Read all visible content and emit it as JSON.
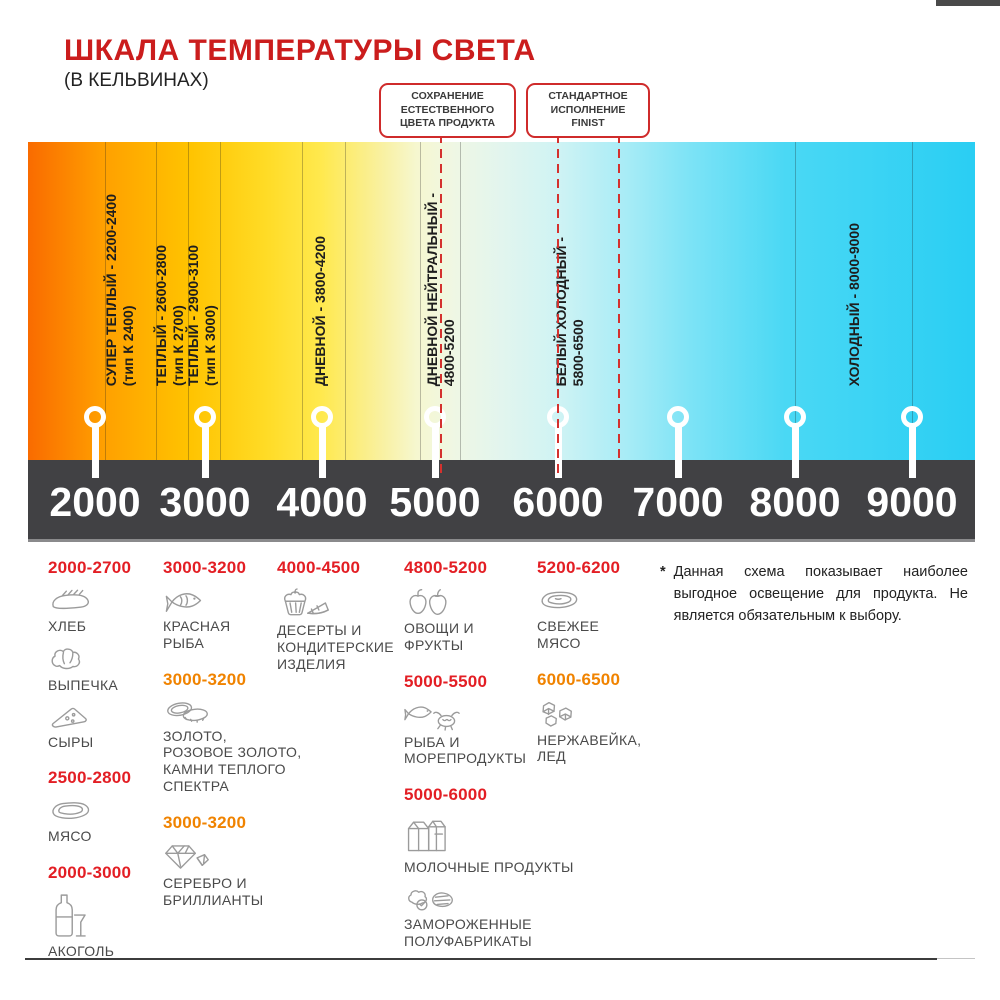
{
  "header": {
    "title": "ШКАЛА ТЕМПЕРАТУРЫ СВЕТА",
    "subtitle": "(В КЕЛЬВИНАХ)"
  },
  "callouts": [
    {
      "text": "СОХРАНЕНИЕ\nЕСТЕСТВЕННОГО\nЦВЕТА ПРОДУКТА"
    },
    {
      "text": "СТАНДАРТНОЕ\nИСПОЛНЕНИЕ\nFINIST"
    }
  ],
  "scale": {
    "segments": [
      {
        "label": "СУПЕР ТЕПЛЫЙ - 2200-2400",
        "sub": "(тип К 2400)"
      },
      {
        "label": "ТЕПЛЫЙ - 2600-2800",
        "sub": "(тип К 2700)"
      },
      {
        "label": "ТЕПЛЫЙ - 2900-3100",
        "sub": "(тип К 3000)"
      },
      {
        "label": "ДНЕВНОЙ - 3800-4200",
        "sub": ""
      },
      {
        "label": "ДНЕВНОЙ НЕЙТРАЛЬНЫЙ -",
        "sub": "4800-5200"
      },
      {
        "label": "БЕЛЫЙ ХОЛОДНЫЙ -",
        "sub": "5800-6500"
      },
      {
        "label": "ХОЛОДНЫЙ - 8000-9000",
        "sub": ""
      }
    ],
    "ticks": [
      "2000",
      "3000",
      "4000",
      "5000",
      "6000",
      "7000",
      "8000",
      "9000"
    ]
  },
  "products": {
    "columns": [
      {
        "groups": [
          {
            "range": "2000-2700",
            "tone": "red",
            "items": [
              {
                "icon": "bread-icon",
                "label": "ХЛЕБ"
              },
              {
                "icon": "pastry-icon",
                "label": "ВЫПЕЧКА"
              },
              {
                "icon": "cheese-icon",
                "label": "СЫРЫ"
              }
            ]
          },
          {
            "range": "2500-2800",
            "tone": "red",
            "items": [
              {
                "icon": "meat-icon",
                "label": "МЯСО"
              }
            ]
          },
          {
            "range": "2000-3000",
            "tone": "red",
            "items": [
              {
                "icon": "alcohol-icon",
                "label": "АКОГОЛЬ"
              }
            ]
          }
        ]
      },
      {
        "groups": [
          {
            "range": "3000-3200",
            "tone": "red",
            "items": [
              {
                "icon": "fish-icon",
                "label": "КРАСНАЯ\nРЫБА"
              }
            ]
          },
          {
            "range": "3000-3200",
            "tone": "orange",
            "items": [
              {
                "icon": "rings-icon",
                "label": "ЗОЛОТО,\nРОЗОВОЕ ЗОЛОТО,\nКАМНИ ТЕПЛОГО\nСПЕКТРА"
              }
            ]
          },
          {
            "range": "3000-3200",
            "tone": "orange",
            "items": [
              {
                "icon": "diamond-icon",
                "label": "СЕРЕБРО И\nБРИЛЛИАНТЫ"
              }
            ]
          }
        ]
      },
      {
        "groups": [
          {
            "range": "4000-4500",
            "tone": "red",
            "items": [
              {
                "icon": "dessert-icon",
                "label": "ДЕСЕРТЫ И\nКОНДИТЕРСКИЕ\nИЗДЕЛИЯ"
              }
            ]
          }
        ]
      },
      {
        "groups": [
          {
            "range": "4800-5200",
            "tone": "red",
            "items": [
              {
                "icon": "produce-icon",
                "label": "ОВОЩИ И\nФРУКТЫ"
              }
            ]
          },
          {
            "range": "5000-5500",
            "tone": "red",
            "items": [
              {
                "icon": "seafood-icon",
                "label": "РЫБА И\nМОРЕПРОДУКТЫ"
              }
            ]
          },
          {
            "range": "5000-6000",
            "tone": "red",
            "items": [
              {
                "icon": "dairy-icon",
                "label": "МОЛОЧНЫЕ ПРОДУКТЫ"
              },
              {
                "icon": "frozen-icon",
                "label": "ЗАМОРОЖЕННЫЕ\nПОЛУФАБРИКАТЫ"
              }
            ]
          }
        ]
      },
      {
        "groups": [
          {
            "range": "5200-6200",
            "tone": "red",
            "items": [
              {
                "icon": "freshmeat-icon",
                "label": "СВЕЖЕЕ\nМЯСО"
              }
            ]
          },
          {
            "range": "6000-6500",
            "tone": "orange",
            "items": [
              {
                "icon": "ice-icon",
                "label": "НЕРЖАВЕЙКА,\nЛЕД"
              }
            ]
          }
        ]
      }
    ]
  },
  "footnote": {
    "marker": "*",
    "text": "Данная схема показывает наиболее выгодное освещение для продукта. Не является обязательным к выбору."
  },
  "colors": {
    "title_red": "#CB1D1D",
    "range_red": "#E31E24",
    "range_orange": "#F08300",
    "callout_border": "#CF2B2B",
    "dashed_line": "#D4312E",
    "scale_band": "#414144",
    "tick_text": "#FFFFFF"
  }
}
